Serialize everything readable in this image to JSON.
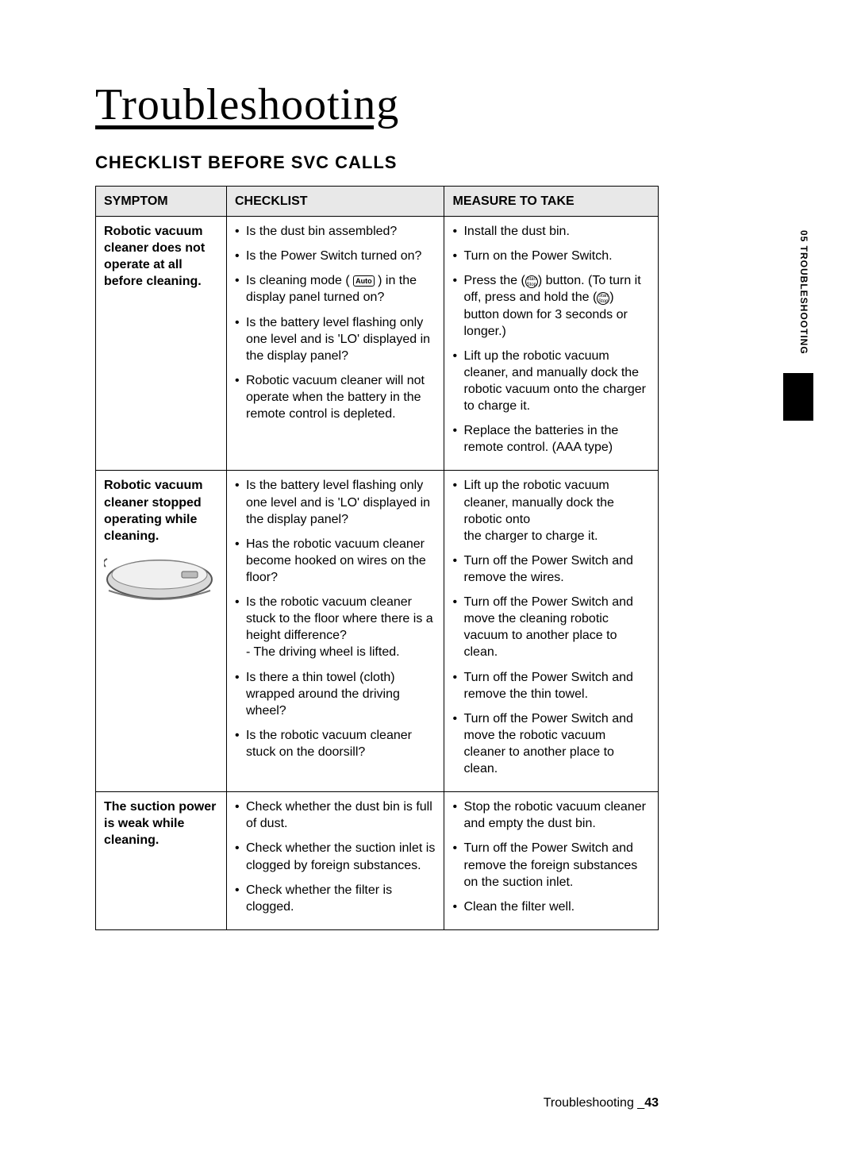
{
  "title": "Troubleshooting",
  "subtitle": "CHECKLIST BEFORE SVC CALLS",
  "side_tab": "05  TROUBLESHOOTING",
  "columns": {
    "symptom": "SYMPTOM",
    "checklist": "CHECKLIST",
    "measure": "MEASURE TO TAKE"
  },
  "footer_label": "Troubleshooting _",
  "footer_page": "43",
  "icons": {
    "auto_label": "Auto",
    "start_label_top": "Start",
    "start_label_bot": "Stop"
  },
  "rows": [
    {
      "symptom": "Robotic vacuum cleaner does not operate at all before cleaning.",
      "checklist": [
        "Is the dust bin assembled?",
        "Is the Power Switch turned on?",
        "Is cleaning mode ( [AUTO] ) in the display panel turned on?",
        "Is the battery level flashing only one level and is 'LO' displayed in the display panel?",
        "Robotic vacuum cleaner will not operate when the battery in the remote control is depleted."
      ],
      "measure": [
        "Install the dust bin.",
        "Turn on the Power Switch.",
        "Press the ([START]) button. (To turn it off, press and hold the ([START]) button down for 3 seconds or longer.)",
        "Lift up the robotic vacuum cleaner, and manually dock the robotic vacuum onto the charger to charge it.",
        "Replace the batteries in the remote control. (AAA type)"
      ]
    },
    {
      "symptom": "Robotic vacuum cleaner stopped operating while cleaning.",
      "has_image": true,
      "checklist": [
        "Is the battery level flashing only one level and is 'LO' displayed in the display panel?",
        "Has the robotic vacuum cleaner become hooked on wires on the floor?",
        "Is the robotic vacuum cleaner stuck to the floor where there is a height difference?\n- The driving wheel is lifted.",
        "Is there a thin towel (cloth) wrapped around the driving wheel?",
        "Is the robotic vacuum cleaner stuck on the doorsill?"
      ],
      "measure": [
        "Lift up the robotic vacuum cleaner, manually dock the robotic onto\nthe charger to charge it.",
        "Turn off the Power Switch and remove the wires.",
        "Turn off the Power Switch and move the cleaning robotic vacuum to another place to clean.",
        "Turn off the Power Switch and remove the thin towel.",
        "Turn off the Power Switch and move the robotic vacuum cleaner to another place to clean."
      ]
    },
    {
      "symptom": "The suction power is weak while cleaning.",
      "checklist": [
        "Check whether the dust bin is full of dust.",
        "Check whether the suction inlet is clogged by foreign substances.",
        "Check whether the filter is clogged."
      ],
      "measure": [
        "Stop the robotic vacuum cleaner and empty the dust bin.",
        "Turn off the Power Switch and remove the foreign substances on the suction inlet.",
        "Clean the filter well."
      ]
    }
  ]
}
